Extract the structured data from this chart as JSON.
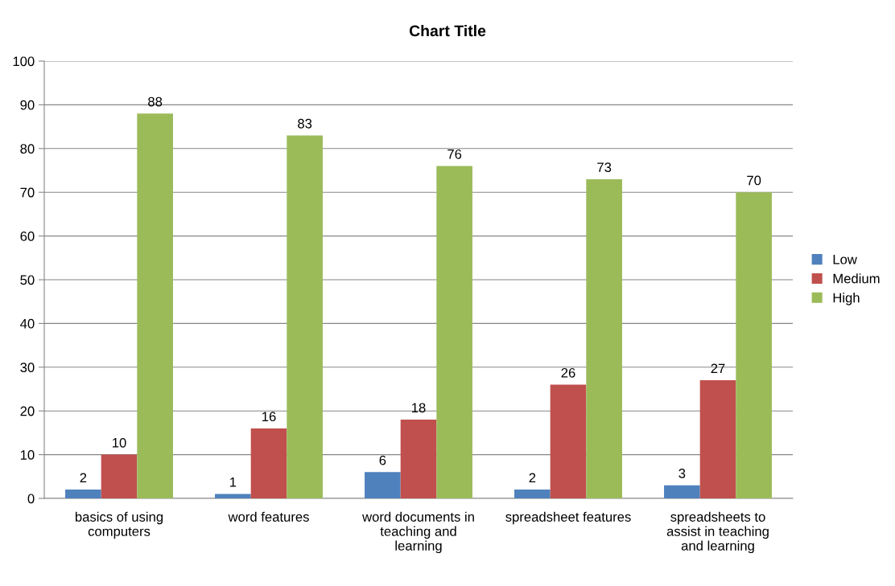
{
  "chart_data": {
    "type": "bar",
    "title": "Chart Title",
    "categories": [
      "basics of using\ncomputers",
      "word features",
      "word documents in\nteaching and\nlearning",
      "spreadsheet features",
      "spreadsheets to\nassist in teaching\nand learning"
    ],
    "series": [
      {
        "name": "Low",
        "color": "#4f81bd",
        "values": [
          2,
          1,
          6,
          2,
          3
        ]
      },
      {
        "name": "Medium",
        "color": "#c0504d",
        "values": [
          10,
          16,
          18,
          26,
          27
        ]
      },
      {
        "name": "High",
        "color": "#9bbb59",
        "values": [
          88,
          83,
          76,
          73,
          70
        ]
      }
    ],
    "ylim": [
      0,
      100
    ],
    "yticks": [
      0,
      10,
      20,
      30,
      40,
      50,
      60,
      70,
      80,
      90,
      100
    ],
    "grid": "y",
    "legend": "right",
    "data_labels": true
  }
}
